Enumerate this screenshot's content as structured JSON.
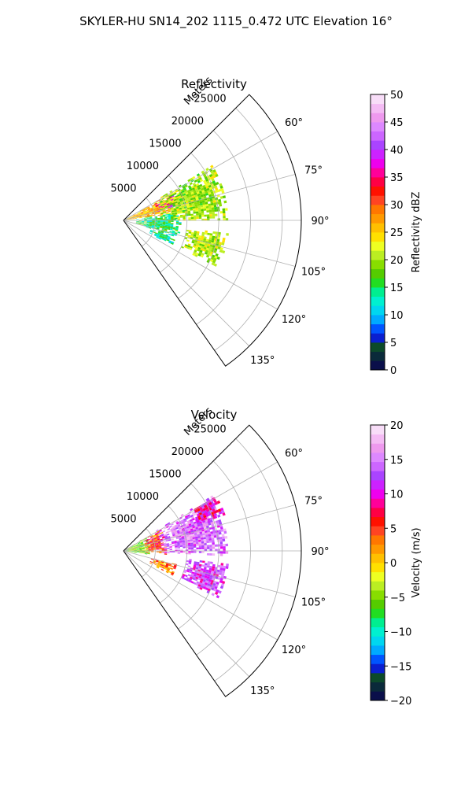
{
  "suptitle": "SKYLER-HU  SN14_202  1115_0.472 UTC Elevation 16°",
  "chart_data": [
    {
      "type": "heatmap",
      "subtype": "polar-sector",
      "title": "Reflectivity",
      "radial_label": "Meters",
      "radial_ticks": [
        5000,
        10000,
        15000,
        20000,
        25000
      ],
      "radial_tick_labels": [
        "5000",
        "10000",
        "15000",
        "20000",
        "25000"
      ],
      "rlim": [
        0,
        28000
      ],
      "theta_range_deg": [
        45,
        145
      ],
      "theta_ticks": [
        60,
        75,
        90,
        105,
        120,
        135
      ],
      "theta_tick_labels": [
        "60°",
        "75°",
        "90°",
        "105°",
        "120°",
        "135°"
      ],
      "grid": true,
      "colorbar": {
        "label": "Reflectivity dBZ",
        "vmin": 0,
        "vmax": 50,
        "ticks": [
          0,
          5,
          10,
          15,
          20,
          25,
          30,
          35,
          40,
          45,
          50
        ],
        "tick_labels": [
          "0",
          "5",
          "10",
          "15",
          "20",
          "25",
          "30",
          "35",
          "40",
          "45",
          "50"
        ],
        "colors": [
          "#0a0f4a",
          "#0a2a3a",
          "#0c4a2a",
          "#0a1fd0",
          "#0055ff",
          "#00aaff",
          "#00d6f0",
          "#00f0d0",
          "#00ee90",
          "#22dd22",
          "#55cc00",
          "#88dd00",
          "#bbee22",
          "#eeff22",
          "#ffe000",
          "#ffc000",
          "#ff9900",
          "#ff7700",
          "#ff4422",
          "#ff1100",
          "#ff0044",
          "#ff0099",
          "#ee00ee",
          "#cc22ff",
          "#aa44ff",
          "#cc66ff",
          "#dd88ff",
          "#ee99ee",
          "#f4bbf4",
          "#f8ddf8"
        ]
      },
      "echo_regions": [
        {
          "theta_range": [
            60,
            82
          ],
          "r_range": [
            0,
            9000
          ],
          "value": 26
        },
        {
          "theta_range": [
            62,
            76
          ],
          "r_range": [
            5500,
            9000
          ],
          "value": 37
        },
        {
          "theta_range": [
            58,
            90
          ],
          "r_range": [
            6000,
            16500
          ],
          "value": 20
        },
        {
          "theta_range": [
            82,
            106
          ],
          "r_range": [
            2000,
            9000
          ],
          "value": 15
        },
        {
          "theta_range": [
            105,
            117
          ],
          "r_range": [
            4500,
            8500
          ],
          "value": 14
        },
        {
          "theta_range": [
            97,
            116
          ],
          "r_range": [
            10000,
            16500
          ],
          "value": 21
        }
      ]
    },
    {
      "type": "heatmap",
      "subtype": "polar-sector",
      "title": "Velocity",
      "radial_label": "Meters",
      "radial_ticks": [
        5000,
        10000,
        15000,
        20000,
        25000
      ],
      "radial_tick_labels": [
        "5000",
        "10000",
        "15000",
        "20000",
        "25000"
      ],
      "rlim": [
        0,
        28000
      ],
      "theta_range_deg": [
        45,
        145
      ],
      "theta_ticks": [
        60,
        75,
        90,
        105,
        120,
        135
      ],
      "theta_tick_labels": [
        "60°",
        "75°",
        "90°",
        "105°",
        "120°",
        "135°"
      ],
      "grid": true,
      "colorbar": {
        "label": "Velocity (m/s)",
        "vmin": -20,
        "vmax": 20,
        "ticks": [
          -20,
          -15,
          -10,
          -5,
          0,
          5,
          10,
          15,
          20
        ],
        "tick_labels": [
          "−20",
          "−15",
          "−10",
          "−5",
          "0",
          "5",
          "10",
          "15",
          "20"
        ],
        "colors": [
          "#0a0f4a",
          "#0a2a3a",
          "#0c4a2a",
          "#0a1fd0",
          "#0055ff",
          "#00aaff",
          "#00d6f0",
          "#00f0d0",
          "#00ee90",
          "#22dd22",
          "#55cc00",
          "#88dd00",
          "#bbee22",
          "#eeff22",
          "#ffe000",
          "#ffc000",
          "#ff9900",
          "#ff7700",
          "#ff4422",
          "#ff1100",
          "#ff0044",
          "#ff0099",
          "#ee00ee",
          "#cc22ff",
          "#aa44ff",
          "#cc66ff",
          "#dd88ff",
          "#ee99ee",
          "#f4bbf4",
          "#f8ddf8"
        ]
      },
      "echo_regions": [
        {
          "theta_range": [
            58,
            100
          ],
          "r_range": [
            0,
            4000
          ],
          "value": -5
        },
        {
          "theta_range": [
            60,
            95
          ],
          "r_range": [
            3500,
            6500
          ],
          "value": 5
        },
        {
          "theta_range": [
            58,
            92
          ],
          "r_range": [
            6000,
            16500
          ],
          "value": 14
        },
        {
          "theta_range": [
            58,
            70
          ],
          "r_range": [
            12000,
            17000
          ],
          "value": 10
        },
        {
          "theta_range": [
            104,
            116
          ],
          "r_range": [
            4500,
            8500
          ],
          "value": 3
        },
        {
          "theta_range": [
            97,
            116
          ],
          "r_range": [
            10000,
            16500
          ],
          "value": 12
        }
      ]
    }
  ]
}
